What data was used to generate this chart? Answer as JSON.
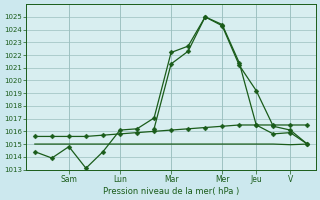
{
  "background_color": "#cce8ee",
  "plot_bg_color": "#d8eef0",
  "grid_color": "#9bbfbf",
  "line_color": "#1a5c1a",
  "title": "Pression niveau de la mer( hPa )",
  "ylim": [
    1013,
    1026
  ],
  "yticks": [
    1013,
    1014,
    1015,
    1016,
    1017,
    1018,
    1019,
    1020,
    1021,
    1022,
    1023,
    1024,
    1025
  ],
  "x_day_labels": [
    "Sam",
    "Lun",
    "Mar",
    "Mer",
    "Jeu",
    "V"
  ],
  "x_day_positions": [
    2,
    5,
    8,
    11,
    13,
    15
  ],
  "num_points": 17,
  "line1_x": [
    0,
    1,
    2,
    3,
    4,
    5,
    6,
    7,
    8,
    9,
    10,
    11,
    12,
    13,
    14,
    15,
    16
  ],
  "line1_y": [
    1014.4,
    1013.9,
    1014.8,
    1013.1,
    1014.4,
    1016.1,
    1016.2,
    1017.05,
    1022.2,
    1022.7,
    1025.0,
    1024.3,
    1021.2,
    1019.2,
    1016.4,
    1016.1,
    1015.0
  ],
  "line2_x": [
    0,
    1,
    2,
    3,
    4,
    5,
    6,
    7,
    8,
    9,
    10,
    11,
    12,
    13,
    14,
    15,
    16
  ],
  "line2_y": [
    1015.6,
    1015.6,
    1015.6,
    1015.6,
    1015.7,
    1015.8,
    1015.9,
    1016.0,
    1016.1,
    1016.2,
    1016.3,
    1016.4,
    1016.5,
    1016.5,
    1016.5,
    1016.5,
    1016.5
  ],
  "line3_x": [
    0,
    1,
    2,
    3,
    4,
    5,
    6,
    7,
    8,
    9,
    10,
    11,
    12,
    13,
    14,
    15,
    16
  ],
  "line3_y": [
    1015.0,
    1015.0,
    1015.0,
    1015.0,
    1015.0,
    1015.0,
    1015.0,
    1015.0,
    1015.0,
    1015.0,
    1015.0,
    1015.0,
    1015.0,
    1015.0,
    1015.0,
    1014.95,
    1015.0
  ],
  "line4_x": [
    7,
    8,
    9,
    10,
    11,
    12,
    13,
    14,
    15,
    16
  ],
  "line4_y": [
    1016.2,
    1021.3,
    1022.3,
    1025.0,
    1024.4,
    1021.4,
    1016.5,
    1015.8,
    1015.9,
    1015.0
  ],
  "xlim": [
    -0.5,
    16.5
  ]
}
